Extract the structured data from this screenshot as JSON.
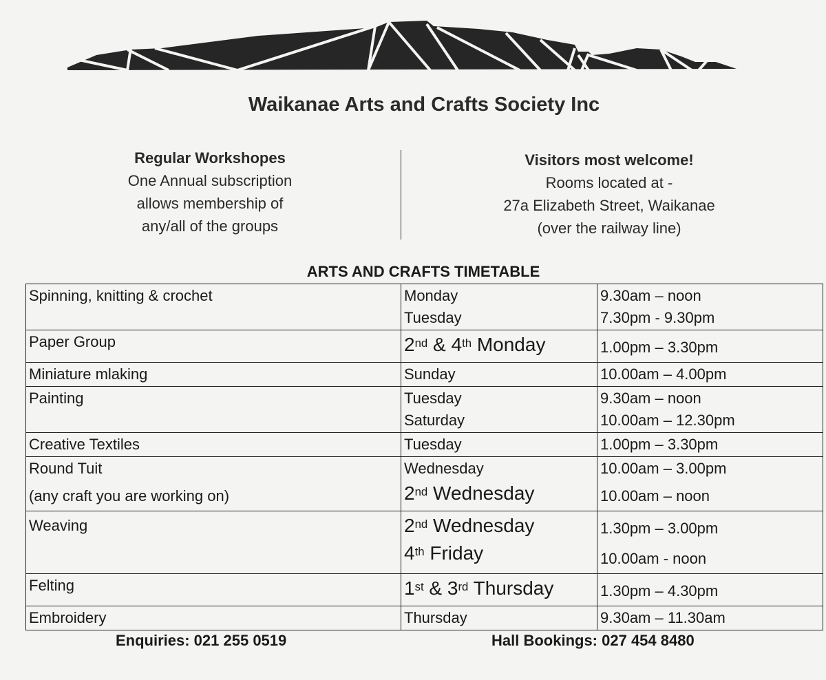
{
  "header": {
    "title": "Waikanae Arts and Crafts Society Inc"
  },
  "intro_left": {
    "heading": "Regular Workshopes",
    "lines": [
      "One Annual subscription",
      "allows membership of",
      "any/all of the groups"
    ]
  },
  "intro_right": {
    "heading": "Visitors most welcome!",
    "lines": [
      "Rooms located at -",
      "27a Elizabeth Street, Waikanae",
      "(over the railway line)"
    ]
  },
  "timetable": {
    "title": "ARTS AND CRAFTS TIMETABLE",
    "rows": [
      {
        "group": [
          "Spinning, knitting & crochet"
        ],
        "days": [
          [
            {
              "t": "Monday"
            }
          ],
          [
            {
              "t": "Tuesday"
            }
          ]
        ],
        "times": [
          "9.30am – noon",
          "7.30pm  - 9.30pm"
        ]
      },
      {
        "group": [
          "Paper Group"
        ],
        "days": [
          [
            {
              "t": "2"
            },
            {
              "sup": "nd"
            },
            {
              "t": " & 4"
            },
            {
              "sup": "th"
            },
            {
              "t": " Monday"
            }
          ]
        ],
        "big": true,
        "times": [
          "1.00pm – 3.30pm"
        ]
      },
      {
        "group": [
          "Miniature mlaking"
        ],
        "days": [
          [
            {
              "t": "Sunday"
            }
          ]
        ],
        "times": [
          "10.00am – 4.00pm"
        ]
      },
      {
        "group": [
          "Painting"
        ],
        "days": [
          [
            {
              "t": "Tuesday"
            }
          ],
          [
            {
              "t": "Saturday"
            }
          ]
        ],
        "times": [
          "9.30am – noon",
          "10.00am – 12.30pm"
        ]
      },
      {
        "group": [
          "Creative Textiles"
        ],
        "days": [
          [
            {
              "t": "Tuesday"
            }
          ]
        ],
        "times": [
          "1.00pm – 3.30pm"
        ]
      },
      {
        "group": [
          "Round Tuit",
          "(any craft you are working on)"
        ],
        "days": [
          [
            {
              "t": "Wednesday"
            }
          ],
          [
            {
              "t": "2"
            },
            {
              "sup": "nd"
            },
            {
              "t": " Wednesday"
            }
          ]
        ],
        "bigSecond": true,
        "times": [
          "10.00am – 3.00pm",
          "10.00am – noon"
        ]
      },
      {
        "group": [
          "Weaving"
        ],
        "days": [
          [
            {
              "t": "2"
            },
            {
              "sup": "nd"
            },
            {
              "t": " Wednesday"
            }
          ],
          [
            {
              "t": "4"
            },
            {
              "sup": "th"
            },
            {
              "t": " Friday"
            }
          ]
        ],
        "big": true,
        "times": [
          "1.30pm – 3.00pm",
          "10.00am - noon"
        ]
      },
      {
        "group": [
          "Felting"
        ],
        "days": [
          [
            {
              "t": "1"
            },
            {
              "sup": "st"
            },
            {
              "t": " & 3"
            },
            {
              "sup": "rd"
            },
            {
              "t": " Thursday"
            }
          ]
        ],
        "big": true,
        "times": [
          "1.30pm – 4.30pm"
        ]
      },
      {
        "group": [
          "Embroidery"
        ],
        "days": [
          [
            {
              "t": "Thursday"
            }
          ]
        ],
        "times": [
          "9.30am – 11.30am"
        ]
      }
    ]
  },
  "footer": {
    "enquiries": "Enquiries: 021 255 0519",
    "hall_bookings": "Hall Bookings: 027 454 8480"
  },
  "colors": {
    "logo": "#262626",
    "background": "#f4f4f2"
  }
}
